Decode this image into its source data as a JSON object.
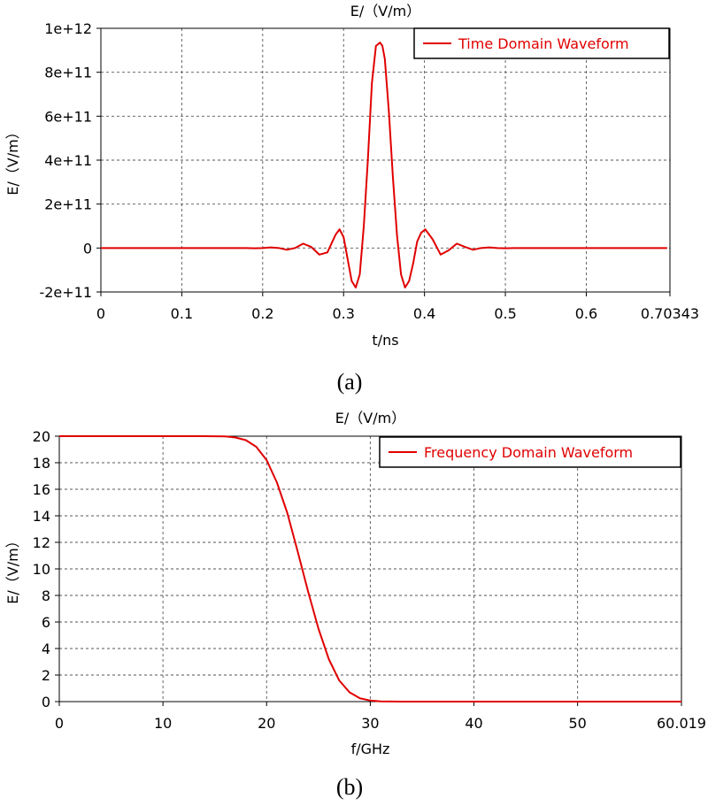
{
  "chart_data": [
    {
      "type": "line",
      "title": "E/（V/m）",
      "xlabel": "t/ns",
      "ylabel": "E/（V/m）",
      "caption": "(a)",
      "xlim": [
        0,
        0.70343
      ],
      "ylim": [
        -200000000000.0,
        1000000000000.0
      ],
      "x_ticks": [
        0,
        0.1,
        0.2,
        0.3,
        0.4,
        0.5,
        0.6,
        0.70343
      ],
      "x_tick_labels": [
        "0",
        "0.1",
        "0.2",
        "0.3",
        "0.4",
        "0.5",
        "0.6",
        "0.70343"
      ],
      "y_ticks": [
        -200000000000.0,
        0,
        200000000000.0,
        400000000000.0,
        600000000000.0,
        800000000000.0,
        1000000000000.0
      ],
      "y_tick_labels": [
        "-2e+11",
        "0",
        "2e+11",
        "4e+11",
        "6e+11",
        "8e+11",
        "1e+12"
      ],
      "grid": true,
      "legend_position": "top-right",
      "series": [
        {
          "name": "Time Domain Waveform",
          "color": "#e00000",
          "x": [
            0,
            0.18,
            0.19,
            0.2,
            0.21,
            0.22,
            0.23,
            0.24,
            0.25,
            0.26,
            0.27,
            0.28,
            0.29,
            0.295,
            0.3,
            0.305,
            0.31,
            0.315,
            0.32,
            0.325,
            0.33,
            0.335,
            0.34,
            0.345,
            0.348,
            0.351,
            0.356,
            0.361,
            0.366,
            0.371,
            0.376,
            0.381,
            0.386,
            0.391,
            0.396,
            0.401,
            0.41,
            0.42,
            0.43,
            0.44,
            0.45,
            0.46,
            0.47,
            0.48,
            0.49,
            0.5,
            0.51,
            0.52,
            0.7
          ],
          "y": [
            0,
            0,
            -1000000000.0,
            0,
            3000000000.0,
            0,
            -8000000000.0,
            0,
            20000000000.0,
            5000000000.0,
            -30000000000.0,
            -20000000000.0,
            60000000000.0,
            85000000000.0,
            50000000000.0,
            -50000000000.0,
            -150000000000.0,
            -180000000000.0,
            -120000000000.0,
            100000000000.0,
            400000000000.0,
            750000000000.0,
            920000000000.0,
            935000000000.0,
            920000000000.0,
            860000000000.0,
            620000000000.0,
            320000000000.0,
            60000000000.0,
            -120000000000.0,
            -180000000000.0,
            -150000000000.0,
            -70000000000.0,
            30000000000.0,
            70000000000.0,
            85000000000.0,
            40000000000.0,
            -30000000000.0,
            -10000000000.0,
            20000000000.0,
            5000000000.0,
            -8000000000.0,
            0,
            3000000000.0,
            0,
            -1000000000.0,
            0,
            0,
            0
          ]
        }
      ]
    },
    {
      "type": "line",
      "title": "E/（V/m）",
      "xlabel": "f/GHz",
      "ylabel": "E/（V/m）",
      "caption": "(b)",
      "xlim": [
        0,
        60.019
      ],
      "ylim": [
        0,
        20
      ],
      "x_ticks": [
        0,
        10,
        20,
        30,
        40,
        50,
        60.019
      ],
      "x_tick_labels": [
        "0",
        "10",
        "20",
        "30",
        "40",
        "50",
        "60.019"
      ],
      "y_ticks": [
        0,
        2,
        4,
        6,
        8,
        10,
        12,
        14,
        16,
        18,
        20
      ],
      "y_tick_labels": [
        "0",
        "2",
        "4",
        "6",
        "8",
        "10",
        "12",
        "14",
        "16",
        "18",
        "20"
      ],
      "grid": true,
      "legend_position": "top-right",
      "series": [
        {
          "name": "Frequency Domain Waveform",
          "color": "#e00000",
          "x": [
            0,
            14,
            16,
            17,
            18,
            19,
            20,
            21,
            22,
            23,
            24,
            25,
            26,
            27,
            28,
            29,
            30,
            31,
            33,
            60.019
          ],
          "y": [
            20,
            20,
            19.98,
            19.9,
            19.7,
            19.2,
            18.2,
            16.5,
            14.2,
            11.3,
            8.3,
            5.5,
            3.2,
            1.6,
            0.7,
            0.25,
            0.08,
            0.02,
            0,
            0
          ]
        }
      ]
    }
  ]
}
